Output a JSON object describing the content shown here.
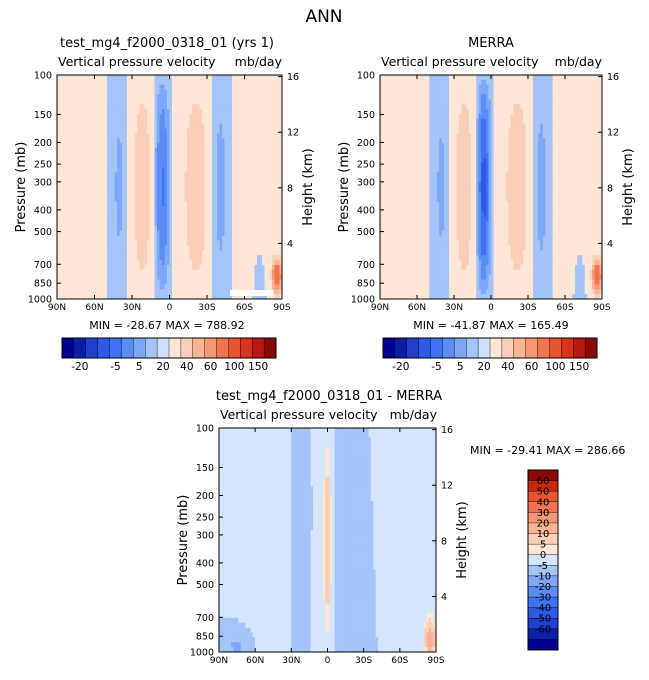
{
  "figure": {
    "title": "ANN"
  },
  "colors": {
    "palette_main": [
      "#00008f",
      "#0a1ea6",
      "#1f3fcc",
      "#2c59e6",
      "#3d72f2",
      "#5b8df5",
      "#7ea8f7",
      "#a5c4f8",
      "#cfe0fb",
      "#fde6d6",
      "#fbcfb7",
      "#f9b395",
      "#f49673",
      "#ee7550",
      "#e65531",
      "#d5341b",
      "#b8180e",
      "#8a0a05"
    ],
    "palette_diff": [
      "#00008f",
      "#0a1ea6",
      "#1f3fcc",
      "#2c59e6",
      "#3d72f2",
      "#5b8df5",
      "#7ea8f7",
      "#a5c4f8",
      "#d4e6fc",
      "#fde6d6",
      "#fbcfb7",
      "#f9b395",
      "#f49673",
      "#ee7550",
      "#e65531",
      "#c9280f",
      "#8a0a05"
    ]
  },
  "panels": [
    {
      "title": "test_mg4_f2000_0318_01 (yrs 1)",
      "left_label": "Vertical pressure velocity",
      "right_label": "mb/day",
      "ylabel": "Pressure (mb)",
      "ylabel_right": "Height (km)",
      "stats": "MIN = -28.67   MAX = 788.92"
    },
    {
      "title": "MERRA",
      "left_label": "Vertical pressure velocity",
      "right_label": "mb/day",
      "ylabel": "Pressure (mb)",
      "ylabel_right": "Height (km)",
      "stats": "MIN = -41.87   MAX = 165.49"
    },
    {
      "title": "test_mg4_f2000_0318_01 - MERRA",
      "left_label": "Vertical pressure velocity",
      "right_label": "mb/day",
      "ylabel": "Pressure (mb)",
      "ylabel_right": "Height (km)",
      "stats": "MIN = -29.41   MAX = 286.66"
    }
  ],
  "chart_data": [
    {
      "type": "heatmap",
      "title": "test_mg4_f2000_0318_01 (yrs 1)",
      "xlabel": "",
      "ylabel": "Pressure (mb)",
      "x_ticks": [
        "90N",
        "60N",
        "30N",
        "0",
        "30S",
        "60S",
        "90S"
      ],
      "y_ticks": [
        100,
        150,
        200,
        250,
        300,
        400,
        500,
        700,
        850,
        1000
      ],
      "y_right_ticks": [
        16,
        12,
        8,
        4
      ],
      "ylim": [
        1000,
        100
      ],
      "y_scale": "log",
      "colorbar_ticks": [
        "-20",
        "-5",
        "5",
        "20",
        "40",
        "60",
        "100",
        "150"
      ],
      "min": -28.67,
      "max": 788.92
    },
    {
      "type": "heatmap",
      "title": "MERRA",
      "ylabel": "Pressure (mb)",
      "x_ticks": [
        "90N",
        "60N",
        "30N",
        "0",
        "30S",
        "60S",
        "90S"
      ],
      "y_ticks": [
        100,
        150,
        200,
        250,
        300,
        400,
        500,
        700,
        850,
        1000
      ],
      "y_right_ticks": [
        16,
        12,
        8,
        4
      ],
      "ylim": [
        1000,
        100
      ],
      "y_scale": "log",
      "colorbar_ticks": [
        "-20",
        "-5",
        "5",
        "20",
        "40",
        "60",
        "100",
        "150"
      ],
      "min": -41.87,
      "max": 165.49
    },
    {
      "type": "heatmap",
      "title": "test_mg4_f2000_0318_01 - MERRA",
      "ylabel": "Pressure (mb)",
      "x_ticks": [
        "90N",
        "60N",
        "30N",
        "0",
        "30S",
        "60S",
        "90S"
      ],
      "y_ticks": [
        100,
        150,
        200,
        250,
        300,
        400,
        500,
        700,
        850,
        1000
      ],
      "y_right_ticks": [
        16,
        12,
        8,
        4
      ],
      "ylim": [
        1000,
        100
      ],
      "y_scale": "log",
      "colorbar_ticks": [
        "60",
        "50",
        "40",
        "30",
        "20",
        "10",
        "5",
        "0",
        "-5",
        "-10",
        "-20",
        "-30",
        "-40",
        "-50",
        "-60"
      ],
      "min": -29.41,
      "max": 286.66
    }
  ]
}
